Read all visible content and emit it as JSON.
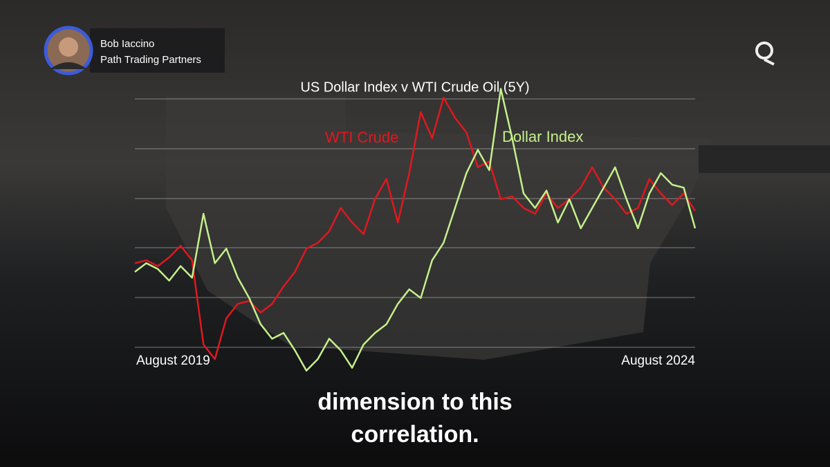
{
  "speaker": {
    "name": "Bob Iaccino",
    "affiliation": "Path Trading Partners"
  },
  "chart_data": {
    "type": "line",
    "title": "US Dollar Index v WTI Crude Oil (5Y)",
    "categories": [
      "August 2019",
      null,
      null,
      null,
      null,
      null,
      null,
      null,
      null,
      null,
      null,
      null,
      null,
      null,
      null,
      null,
      null,
      null,
      null,
      null,
      null,
      null,
      null,
      null,
      null,
      null,
      null,
      null,
      null,
      null,
      null,
      null,
      null,
      null,
      null,
      null,
      null,
      null,
      null,
      null,
      null,
      null,
      null,
      null,
      null,
      null,
      null,
      null,
      null,
      "August 2024"
    ],
    "ylim": [
      0,
      100
    ],
    "series": [
      {
        "name": "WTI Crude",
        "color": "#e0181f",
        "values": [
          38,
          39,
          37,
          40,
          44,
          39,
          10,
          5,
          19,
          24,
          25,
          21,
          24,
          30,
          35,
          43,
          45,
          49,
          57,
          52,
          48,
          60,
          67,
          52,
          69,
          90,
          81,
          95,
          88,
          83,
          71,
          73,
          60,
          61,
          57,
          55,
          62,
          57,
          60,
          64,
          71,
          64,
          60,
          55,
          57,
          67,
          62,
          58,
          62,
          56
        ]
      },
      {
        "name": "Dollar Index",
        "color": "#c5f08c",
        "values": [
          35,
          38,
          36,
          32,
          37,
          33,
          55,
          38,
          43,
          33,
          26,
          17,
          12,
          14,
          8,
          1,
          5,
          12,
          8,
          2,
          10,
          14,
          17,
          24,
          29,
          26,
          39,
          45,
          57,
          69,
          77,
          70,
          98,
          81,
          62,
          57,
          63,
          52,
          60,
          50,
          57,
          64,
          71,
          60,
          50,
          62,
          69,
          65,
          64,
          50
        ]
      }
    ]
  },
  "caption": {
    "lines": [
      "dimension to this",
      "correlation."
    ]
  }
}
